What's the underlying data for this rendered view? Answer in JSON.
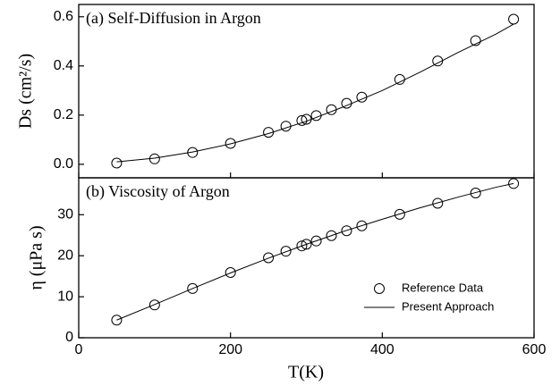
{
  "chart_data": [
    {
      "type": "line",
      "annotation": "(a) Self-Diffusion in Argon",
      "ylabel": "Ds (cm²/s)",
      "xlim": [
        0,
        600
      ],
      "xticks": [
        0,
        200,
        400,
        600
      ],
      "ylim": [
        -0.055,
        0.65
      ],
      "yticks": [
        {
          "value": 0,
          "label": "0.0"
        },
        0.2,
        0.4,
        0.6
      ],
      "series": [
        {
          "style": "markers",
          "color": "#000000",
          "x": [
            50,
            100,
            150,
            200,
            250,
            273,
            294,
            300,
            313,
            333,
            353,
            373,
            423,
            473,
            523,
            573
          ],
          "values": [
            0.005,
            0.022,
            0.048,
            0.085,
            0.13,
            0.155,
            0.178,
            0.183,
            0.198,
            0.222,
            0.248,
            0.273,
            0.345,
            0.42,
            0.503,
            0.59
          ]
        },
        {
          "style": "line",
          "color": "#000000",
          "x": [
            50,
            100,
            150,
            200,
            250,
            300,
            350,
            400,
            450,
            500,
            550,
            573
          ],
          "values": [
            0.01,
            0.025,
            0.05,
            0.083,
            0.125,
            0.175,
            0.235,
            0.3,
            0.375,
            0.455,
            0.53,
            0.57
          ]
        }
      ]
    },
    {
      "type": "line",
      "annotation": "(b) Viscosity of Argon",
      "ylabel": "η (μPa s)",
      "xlabel": "T(K)",
      "xlim": [
        0,
        600
      ],
      "xticks": [
        0,
        200,
        400,
        600
      ],
      "ylim": [
        0,
        39
      ],
      "yticks": [
        0,
        10,
        20,
        30
      ],
      "legend": "lower right",
      "series": [
        {
          "name": "Reference Data",
          "style": "markers",
          "color": "#000000",
          "x": [
            50,
            100,
            150,
            200,
            250,
            273,
            294,
            300,
            313,
            333,
            353,
            373,
            423,
            473,
            523,
            573
          ],
          "values": [
            4.3,
            8.0,
            12.0,
            15.9,
            19.5,
            21.1,
            22.4,
            22.8,
            23.6,
            24.9,
            26.1,
            27.3,
            30.1,
            32.8,
            35.3,
            37.6
          ]
        },
        {
          "name": "Present Approach",
          "style": "line",
          "color": "#000000",
          "x": [
            50,
            100,
            150,
            200,
            250,
            300,
            350,
            400,
            450,
            500,
            550,
            573
          ],
          "values": [
            4.3,
            8.1,
            12.0,
            15.8,
            19.4,
            22.8,
            26.0,
            28.9,
            31.7,
            34.3,
            36.7,
            37.6
          ]
        }
      ]
    }
  ]
}
